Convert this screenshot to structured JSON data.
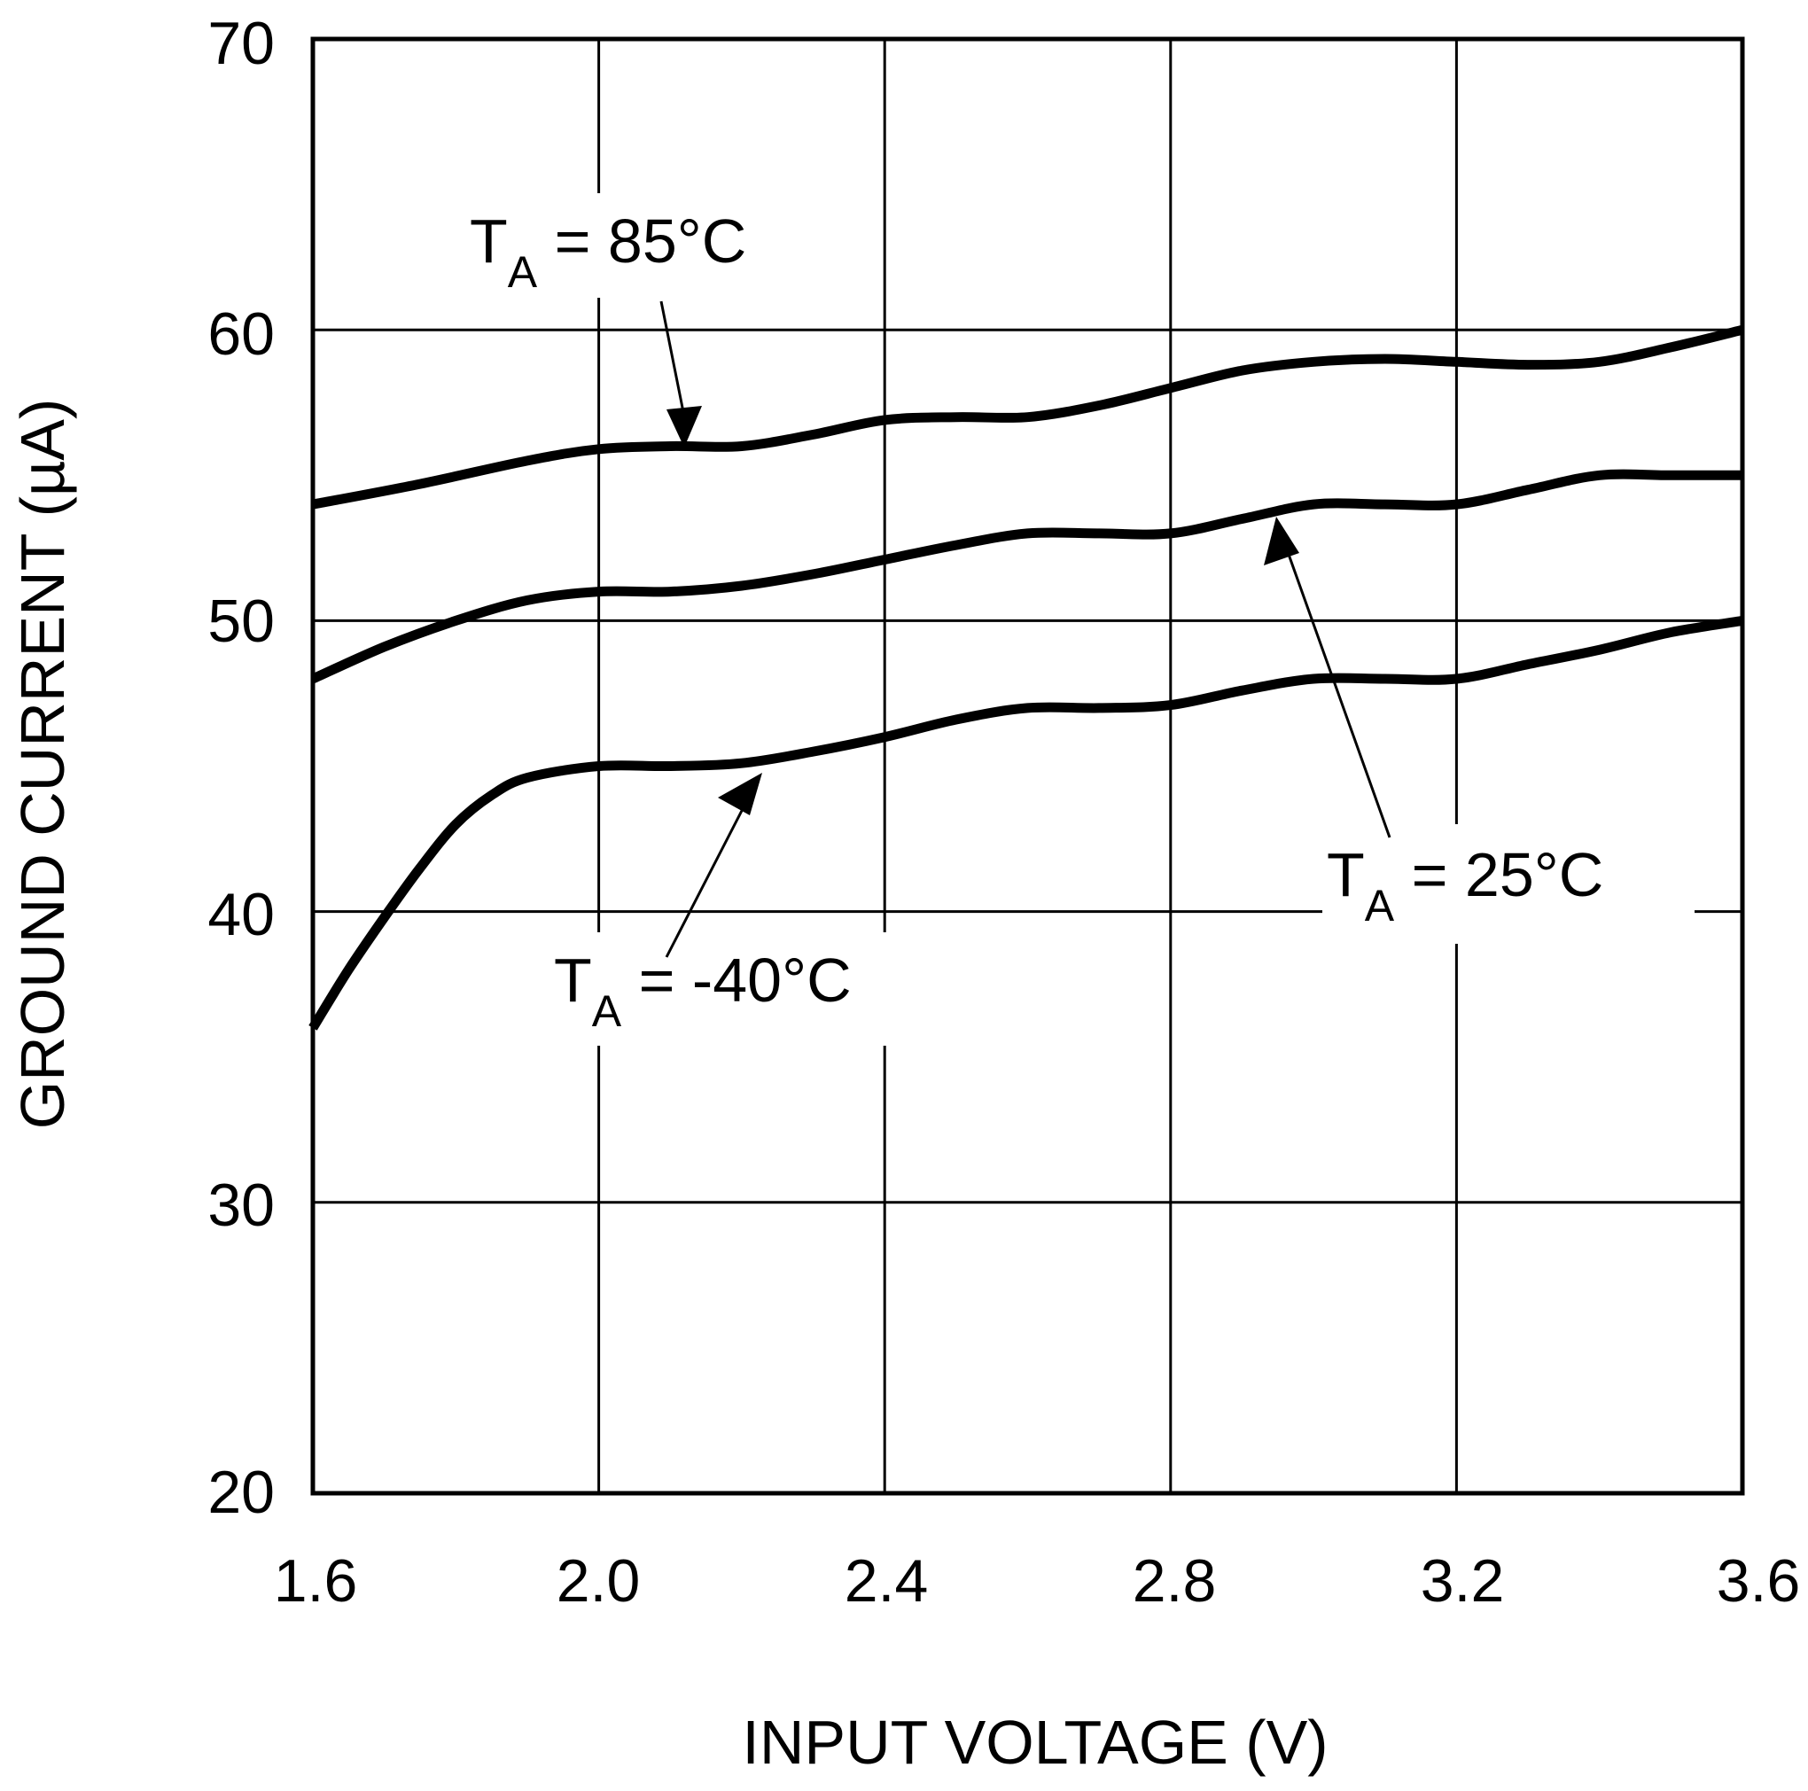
{
  "chart_data": {
    "type": "line",
    "title": "",
    "xlabel": "INPUT VOLTAGE (V)",
    "ylabel": "GROUND CURRENT (µA)",
    "xlim": [
      1.6,
      3.6
    ],
    "ylim": [
      20,
      70
    ],
    "x_ticks": [
      "1.6",
      "2.0",
      "2.4",
      "2.8",
      "3.2",
      "3.6"
    ],
    "y_ticks": [
      "20",
      "30",
      "40",
      "50",
      "60",
      "70"
    ],
    "grid": true,
    "legend": "none",
    "line_color": "#000000",
    "series": [
      {
        "label_main": "T",
        "label_sub": "A",
        "label_rest": " = 85°C",
        "x": [
          1.6,
          1.75,
          1.9,
          2.0,
          2.1,
          2.2,
          2.3,
          2.4,
          2.5,
          2.6,
          2.7,
          2.8,
          2.9,
          3.0,
          3.1,
          3.2,
          3.3,
          3.4,
          3.5,
          3.6
        ],
        "y": [
          54.0,
          54.7,
          55.5,
          55.9,
          56.0,
          56.0,
          56.4,
          56.9,
          57.0,
          57.0,
          57.4,
          58.0,
          58.6,
          58.9,
          59.0,
          58.9,
          58.8,
          58.9,
          59.4,
          60.0
        ]
      },
      {
        "label_main": "T",
        "label_sub": "A",
        "label_rest": " = 25°C",
        "x": [
          1.6,
          1.7,
          1.8,
          1.9,
          2.0,
          2.1,
          2.2,
          2.3,
          2.4,
          2.5,
          2.6,
          2.7,
          2.8,
          2.9,
          3.0,
          3.1,
          3.2,
          3.3,
          3.4,
          3.5,
          3.6
        ],
        "y": [
          48.0,
          49.1,
          50.0,
          50.7,
          51.0,
          51.0,
          51.2,
          51.6,
          52.1,
          52.6,
          53.0,
          53.0,
          53.0,
          53.5,
          54.0,
          54.0,
          54.0,
          54.5,
          55.0,
          55.0,
          55.0
        ]
      },
      {
        "label_main": "T",
        "label_sub": "A",
        "label_rest": " = -40°C",
        "x": [
          1.6,
          1.65,
          1.7,
          1.75,
          1.8,
          1.85,
          1.9,
          2.0,
          2.1,
          2.2,
          2.3,
          2.4,
          2.5,
          2.6,
          2.7,
          2.8,
          2.9,
          3.0,
          3.1,
          3.2,
          3.3,
          3.4,
          3.5,
          3.6
        ],
        "y": [
          36.0,
          38.0,
          39.8,
          41.5,
          43.0,
          44.0,
          44.6,
          45.0,
          45.0,
          45.1,
          45.5,
          46.0,
          46.6,
          47.0,
          47.0,
          47.1,
          47.6,
          48.0,
          48.0,
          48.0,
          48.5,
          49.0,
          49.6,
          50.0
        ]
      }
    ]
  }
}
